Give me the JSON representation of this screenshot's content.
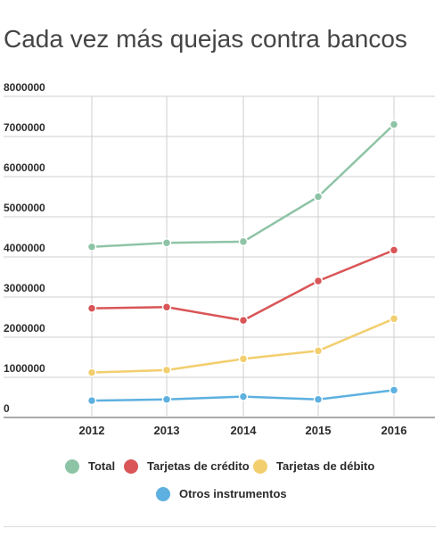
{
  "title": "Cada vez más quejas contra bancos",
  "chart_data": {
    "type": "line",
    "title": "Cada vez más quejas contra bancos",
    "xlabel": "",
    "ylabel": "",
    "categories": [
      "2012",
      "2013",
      "2014",
      "2015",
      "2016"
    ],
    "ylim": [
      0,
      8000000
    ],
    "yticks": [
      "0",
      "1000000",
      "2000000",
      "3000000",
      "4000000",
      "5000000",
      "6000000",
      "7000000",
      "8000000"
    ],
    "grid": true,
    "legend_position": "bottom",
    "series": [
      {
        "name": "Total",
        "color": "#8ec4a6",
        "values": [
          4250000,
          4350000,
          4380000,
          5500000,
          7300000
        ]
      },
      {
        "name": "Tarjetas de crédito",
        "color": "#d95557",
        "values": [
          2720000,
          2750000,
          2420000,
          3400000,
          4170000
        ]
      },
      {
        "name": "Tarjetas de débito",
        "color": "#f2ce6e",
        "values": [
          1120000,
          1180000,
          1460000,
          1660000,
          2460000
        ]
      },
      {
        "name": "Otros instrumentos",
        "color": "#5db0df",
        "values": [
          420000,
          450000,
          520000,
          450000,
          680000
        ]
      }
    ]
  }
}
